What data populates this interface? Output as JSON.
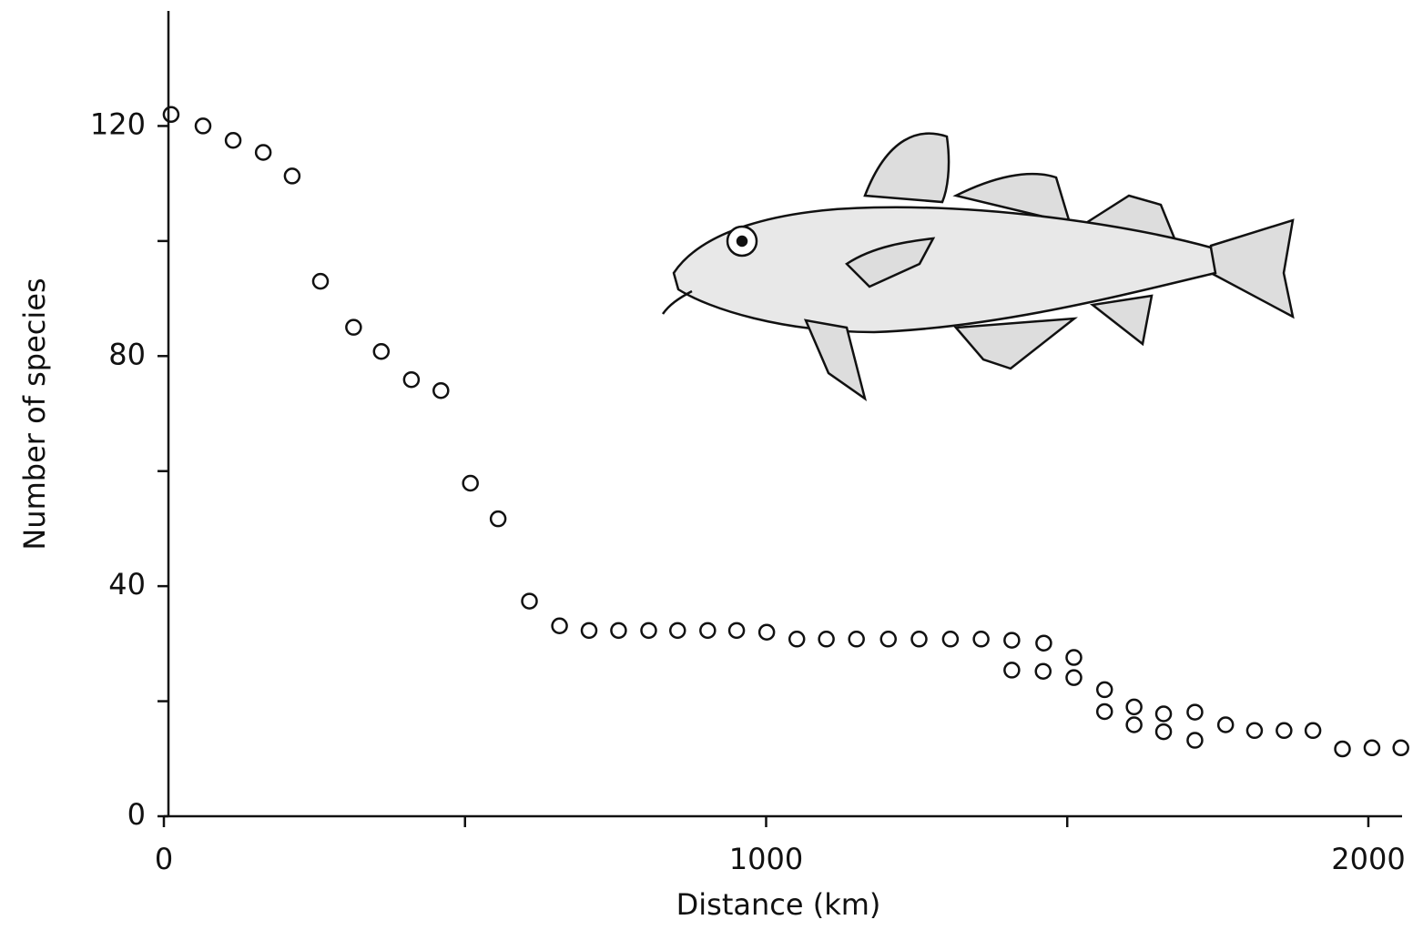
{
  "chart_data": {
    "type": "scatter",
    "x_label": "Distance (km)",
    "y_label": "Number of species",
    "x": [
      12,
      65,
      115,
      165,
      213,
      260,
      315,
      361,
      411,
      460,
      509,
      555,
      607,
      657,
      706,
      755,
      805,
      853,
      903,
      951,
      1001,
      1051,
      1100,
      1150,
      1203,
      1254,
      1306,
      1357,
      1408,
      1408,
      1461,
      1460,
      1511,
      1511,
      1562,
      1562,
      1611,
      1611,
      1660,
      1660,
      1712,
      1712,
      1763,
      1811,
      1860,
      1908,
      1957,
      2006,
      2054
    ],
    "values": [
      122,
      120,
      117.5,
      115.4,
      111.3,
      93,
      85,
      80.8,
      75.9,
      74,
      57.9,
      51.7,
      37.4,
      33.1,
      32.3,
      32.3,
      32.3,
      32.3,
      32.3,
      32.3,
      32,
      30.8,
      30.8,
      30.8,
      30.8,
      30.8,
      30.8,
      30.8,
      30.6,
      25.4,
      30.1,
      25.2,
      27.6,
      24.1,
      22,
      18.2,
      19,
      15.9,
      17.8,
      14.7,
      18.1,
      13.2,
      15.9,
      14.9,
      14.9,
      14.9,
      11.7,
      11.9,
      11.9
    ],
    "color": "#111111",
    "xlim": [
      0,
      2056
    ],
    "ylim": [
      0,
      140
    ],
    "xticks": [
      0,
      1000,
      2000
    ],
    "yticks": [
      0,
      40,
      80,
      120
    ],
    "xminorticks": [
      500,
      1500
    ],
    "yminorticks": [
      20,
      60,
      100
    ]
  }
}
